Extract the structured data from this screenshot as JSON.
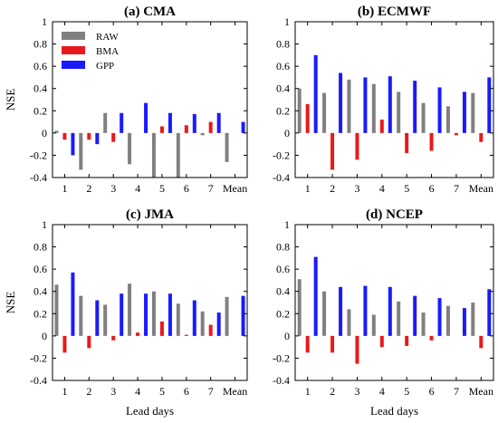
{
  "chart_data": [
    {
      "type": "bar",
      "title": "(a) CMA",
      "ylabel": "NSE",
      "xlabel": "",
      "categories": [
        "1",
        "2",
        "3",
        "4",
        "5",
        "6",
        "7",
        "Mean"
      ],
      "yticks": [
        "1",
        "0.8",
        "0.6",
        "0.4",
        "0.2",
        "0",
        "-0.2",
        "-0.4"
      ],
      "ylim": [
        -0.4,
        1
      ],
      "grid": false,
      "legend": "top-left",
      "series": [
        {
          "name": "RAW",
          "color": "#808080",
          "values": [
            0.02,
            -0.33,
            0.18,
            -0.28,
            -0.4,
            -0.4,
            -0.02,
            -0.26
          ]
        },
        {
          "name": "BMA",
          "color": "#e8191c",
          "values": [
            -0.06,
            -0.06,
            -0.08,
            0.0,
            0.06,
            0.07,
            0.1,
            0.0
          ]
        },
        {
          "name": "GPP",
          "color": "#1a1aff",
          "values": [
            -0.2,
            -0.1,
            0.18,
            0.27,
            0.18,
            0.17,
            0.18,
            0.1
          ]
        }
      ]
    },
    {
      "type": "bar",
      "title": "(b) ECMWF",
      "ylabel": "",
      "xlabel": "",
      "categories": [
        "1",
        "2",
        "3",
        "4",
        "5",
        "6",
        "7",
        "Mean"
      ],
      "yticks": [
        "1",
        "0.8",
        "0.6",
        "0.4",
        "0.2",
        "0",
        "-0.2",
        "-0.4"
      ],
      "ylim": [
        -0.4,
        1
      ],
      "grid": false,
      "series": [
        {
          "name": "RAW",
          "color": "#808080",
          "values": [
            0.4,
            0.36,
            0.48,
            0.44,
            0.37,
            0.27,
            0.24,
            0.36
          ]
        },
        {
          "name": "BMA",
          "color": "#e8191c",
          "values": [
            0.26,
            -0.33,
            -0.24,
            0.12,
            -0.18,
            -0.16,
            -0.02,
            -0.08
          ]
        },
        {
          "name": "GPP",
          "color": "#1a1aff",
          "values": [
            0.7,
            0.54,
            0.5,
            0.51,
            0.47,
            0.41,
            0.37,
            0.5
          ]
        }
      ]
    },
    {
      "type": "bar",
      "title": "(c) JMA",
      "ylabel": "NSE",
      "xlabel": "Lead days",
      "categories": [
        "1",
        "2",
        "3",
        "4",
        "5",
        "6",
        "7",
        "Mean"
      ],
      "yticks": [
        "1",
        "0.8",
        "0.6",
        "0.4",
        "0.2",
        "0",
        "-0.2",
        "-0.4"
      ],
      "ylim": [
        -0.4,
        1
      ],
      "grid": false,
      "series": [
        {
          "name": "RAW",
          "color": "#808080",
          "values": [
            0.46,
            0.36,
            0.28,
            0.47,
            0.4,
            0.29,
            0.22,
            0.35
          ]
        },
        {
          "name": "BMA",
          "color": "#e8191c",
          "values": [
            -0.15,
            -0.11,
            -0.04,
            0.03,
            0.13,
            0.01,
            0.1,
            0.0
          ]
        },
        {
          "name": "GPP",
          "color": "#1a1aff",
          "values": [
            0.57,
            0.32,
            0.38,
            0.38,
            0.38,
            0.32,
            0.21,
            0.36
          ]
        }
      ]
    },
    {
      "type": "bar",
      "title": "(d) NCEP",
      "ylabel": "",
      "xlabel": "Lead days",
      "categories": [
        "1",
        "2",
        "3",
        "4",
        "5",
        "6",
        "7",
        "Mean"
      ],
      "yticks": [
        "1",
        "0.8",
        "0.6",
        "0.4",
        "0.2",
        "0",
        "-0.2",
        "-0.4"
      ],
      "ylim": [
        -0.4,
        1
      ],
      "grid": false,
      "series": [
        {
          "name": "RAW",
          "color": "#808080",
          "values": [
            0.51,
            0.4,
            0.24,
            0.19,
            0.31,
            0.21,
            0.27,
            0.3
          ]
        },
        {
          "name": "BMA",
          "color": "#e8191c",
          "values": [
            -0.15,
            -0.15,
            -0.25,
            -0.1,
            -0.09,
            -0.04,
            0.0,
            -0.11
          ]
        },
        {
          "name": "GPP",
          "color": "#1a1aff",
          "values": [
            0.71,
            0.44,
            0.45,
            0.44,
            0.36,
            0.34,
            0.25,
            0.42
          ]
        }
      ]
    }
  ]
}
